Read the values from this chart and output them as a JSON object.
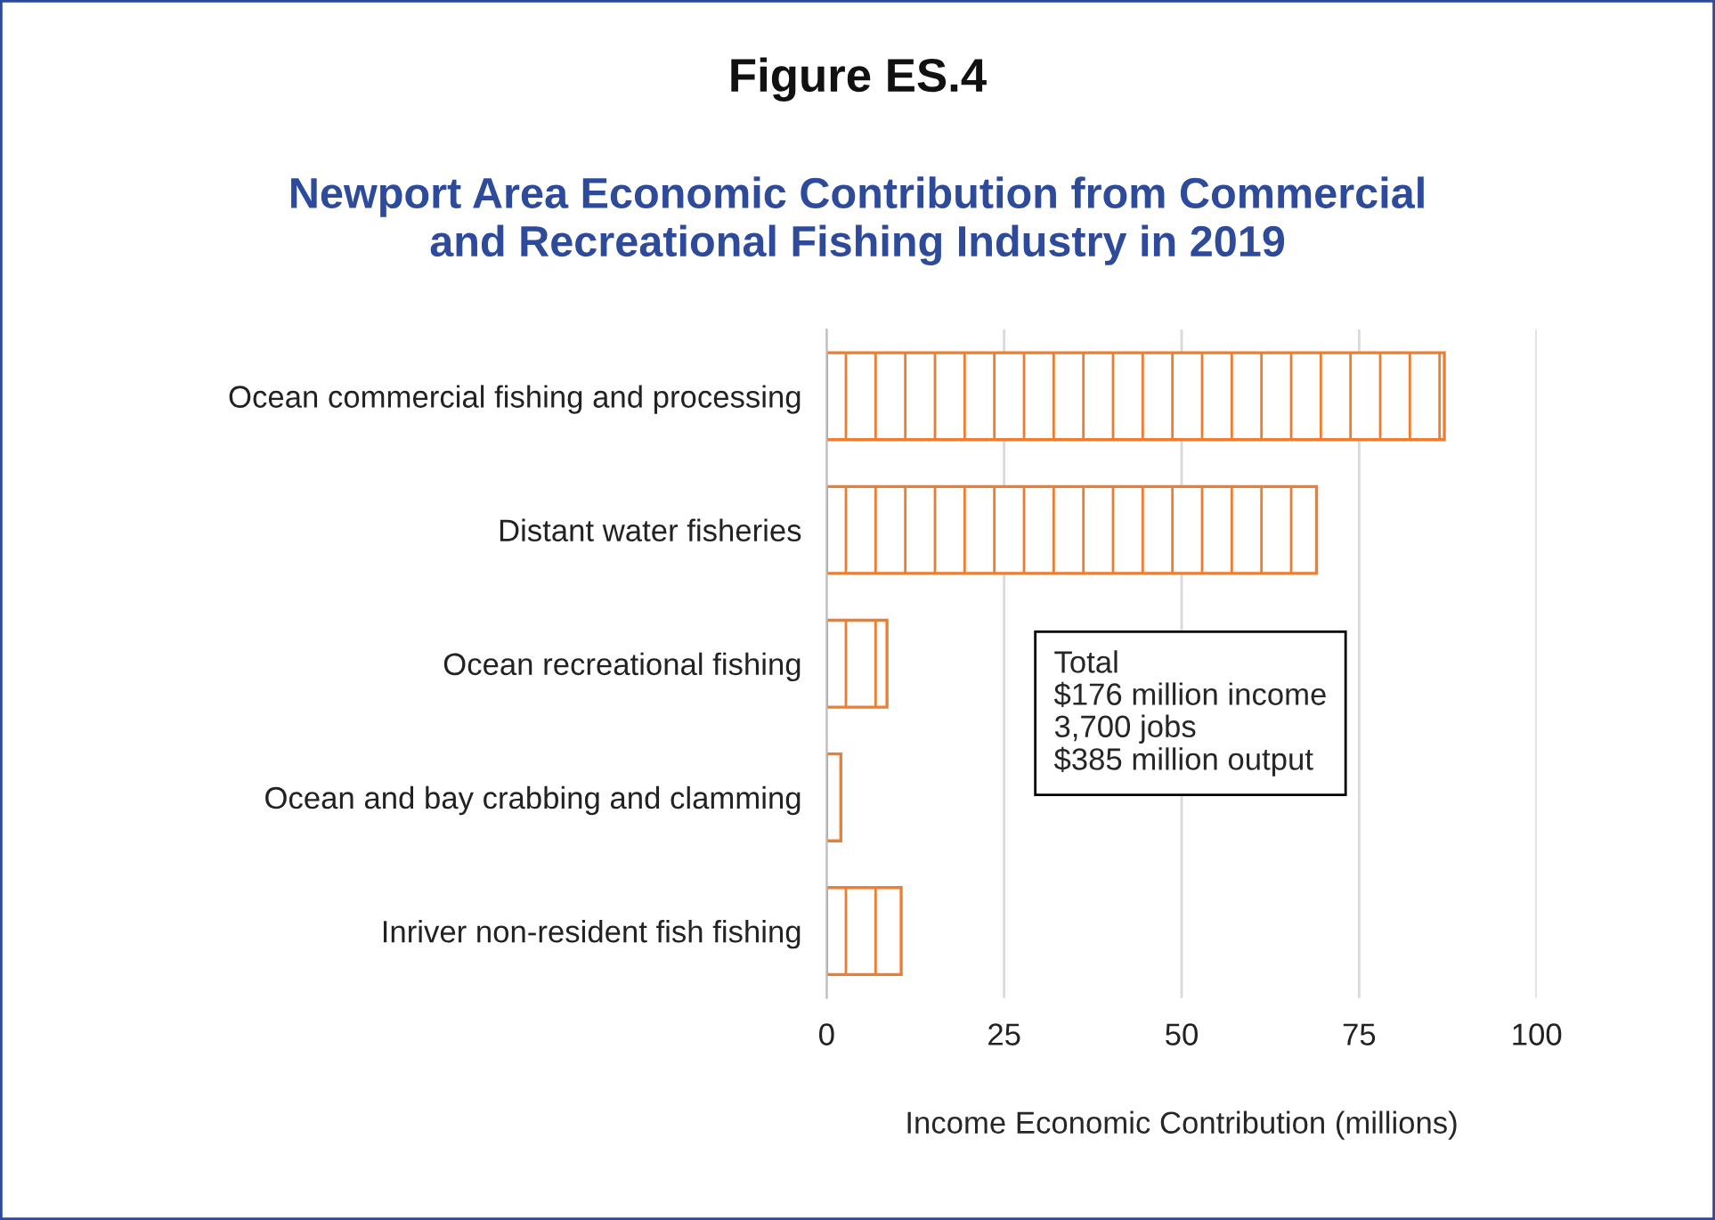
{
  "chart_data": {
    "type": "bar",
    "orientation": "horizontal",
    "title": "Figure ES.4",
    "subtitle": "Newport Area Economic Contribution from Commercial\nand Recreational Fishing Industry in 2019",
    "categories": [
      "Ocean commercial fishing and processing",
      "Distant water fisheries",
      "Ocean recreational fishing",
      "Ocean and bay crabbing and clamming",
      "Inriver non-resident fish fishing"
    ],
    "values": [
      87,
      69,
      8.5,
      2,
      10.5
    ],
    "color": "#ed7d31",
    "xlim": [
      0,
      100
    ],
    "xticks": [
      0,
      25,
      50,
      75,
      100
    ],
    "grid": "x",
    "xlabel": "Income Economic Contribution (millions)",
    "annotations": [
      "Total\n$176 million income\n3,700 jobs\n$385 million output"
    ]
  }
}
